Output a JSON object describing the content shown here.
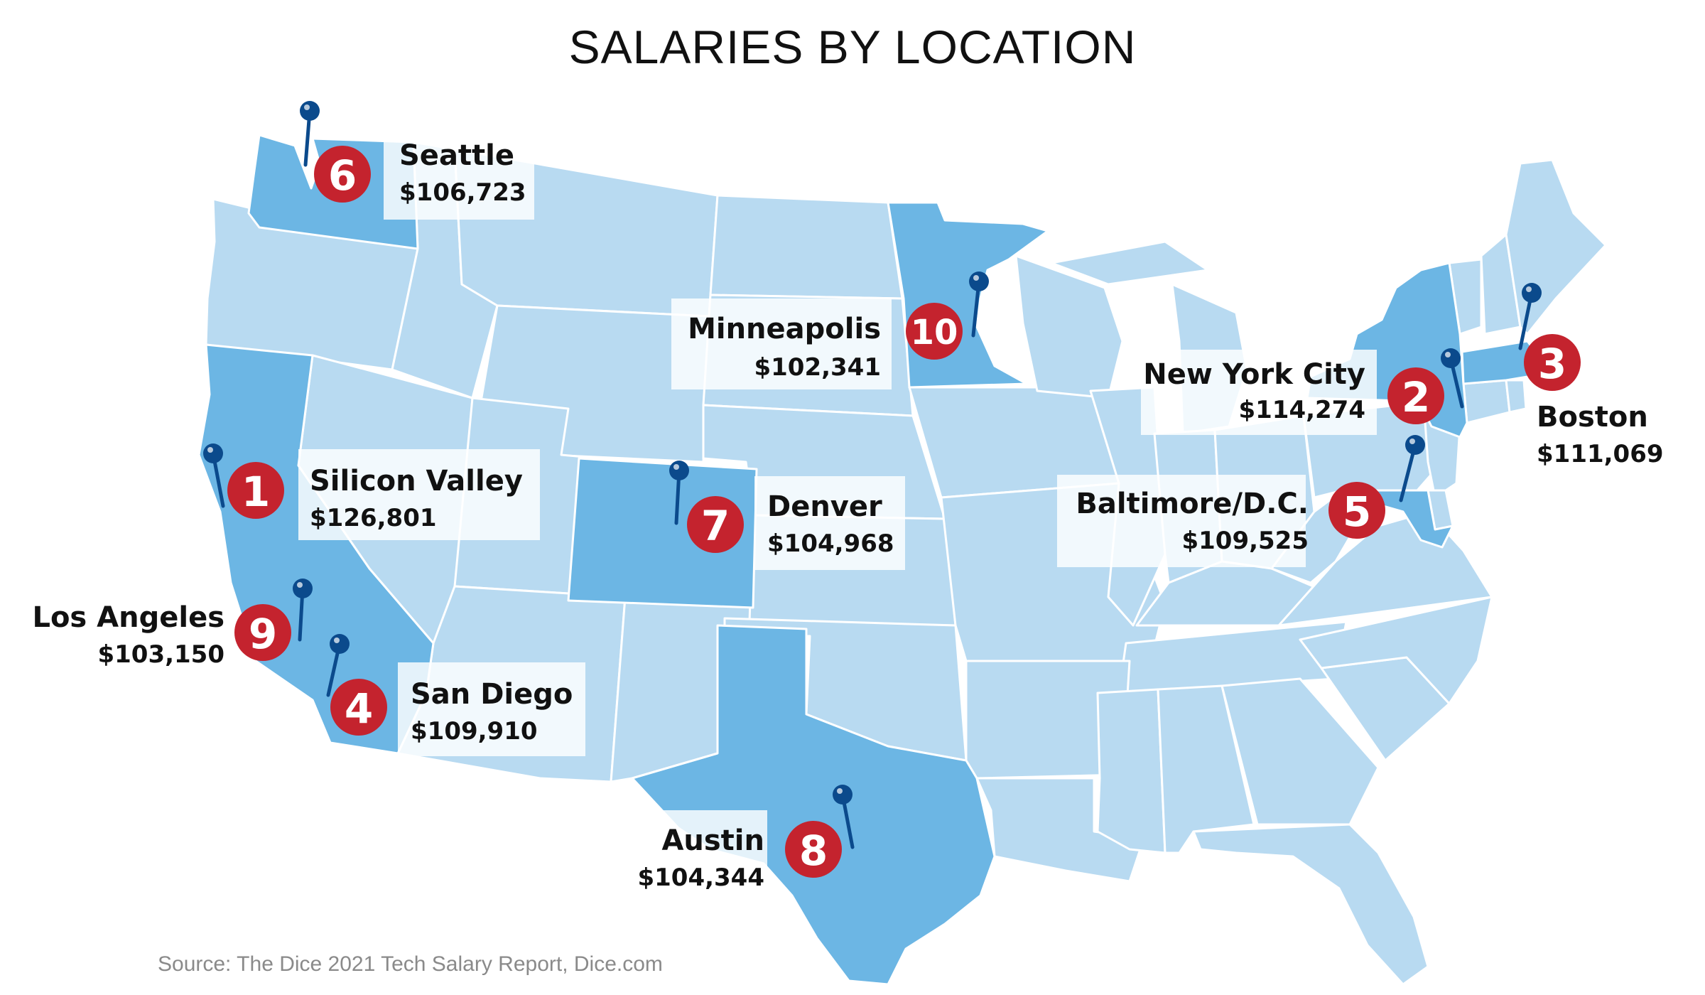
{
  "title": "SALARIES BY LOCATION",
  "source": "Source: The Dice 2021 Tech Salary Report, Dice.com",
  "colors": {
    "state_base": "#b8daf1",
    "state_highlight": "#6cb6e4",
    "state_border": "#ffffff",
    "rank_badge": "#c4232e",
    "pin": "#0b4a8c",
    "text": "#111111",
    "source_text": "#8a8a8a"
  },
  "highlighted_states": [
    "Washington",
    "California",
    "Colorado",
    "Texas",
    "Minnesota",
    "New York",
    "Massachusetts",
    "Maryland"
  ],
  "locations": [
    {
      "rank": "1",
      "city": "Silicon Valley",
      "salary": "$126,801",
      "pin_icon": "map-pin-icon"
    },
    {
      "rank": "2",
      "city": "New York City",
      "salary": "$114,274",
      "pin_icon": "map-pin-icon"
    },
    {
      "rank": "3",
      "city": "Boston",
      "salary": "$111,069",
      "pin_icon": "map-pin-icon"
    },
    {
      "rank": "4",
      "city": "San Diego",
      "salary": "$109,910",
      "pin_icon": "map-pin-icon"
    },
    {
      "rank": "5",
      "city": "Baltimore/D.C.",
      "salary": "$109,525",
      "pin_icon": "map-pin-icon"
    },
    {
      "rank": "6",
      "city": "Seattle",
      "salary": "$106,723",
      "pin_icon": "map-pin-icon"
    },
    {
      "rank": "7",
      "city": "Denver",
      "salary": "$104,968",
      "pin_icon": "map-pin-icon"
    },
    {
      "rank": "8",
      "city": "Austin",
      "salary": "$104,344",
      "pin_icon": "map-pin-icon"
    },
    {
      "rank": "9",
      "city": "Los Angeles",
      "salary": "$103,150",
      "pin_icon": "map-pin-icon"
    },
    {
      "rank": "10",
      "city": "Minneapolis",
      "salary": "$102,341",
      "pin_icon": "map-pin-icon"
    }
  ]
}
